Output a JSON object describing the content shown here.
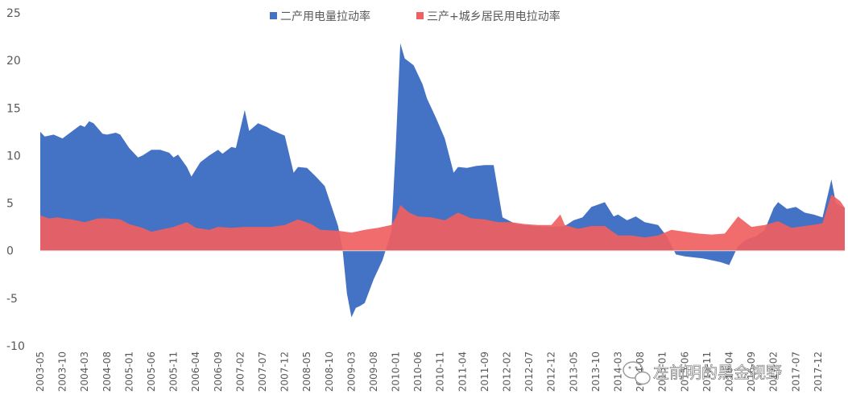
{
  "chart_data": {
    "type": "area",
    "ylim": [
      -10,
      25
    ],
    "yticks": [
      -10,
      -5,
      0,
      5,
      10,
      15,
      20,
      25
    ],
    "grid": false,
    "legend_position": "top",
    "x_start": "2003-05",
    "x_end": "2018-06",
    "x_step_months": 5,
    "xtick_labels": [
      "2003-05",
      "2003-10",
      "2004-03",
      "2004-08",
      "2005-01",
      "2005-06",
      "2005-11",
      "2006-04",
      "2006-09",
      "2007-02",
      "2007-07",
      "2007-12",
      "2008-05",
      "2008-10",
      "2009-03",
      "2009-08",
      "2010-01",
      "2010-06",
      "2010-11",
      "2011-04",
      "2011-09",
      "2012-02",
      "2012-07",
      "2012-12",
      "2013-05",
      "2013-10",
      "2014-03",
      "2014-08",
      "2015-01",
      "2015-06",
      "2015-11",
      "2016-04",
      "2016-09",
      "2017-02",
      "2017-07",
      "2017-12"
    ],
    "series": [
      {
        "name": "二产用电量拉动率",
        "color": "#4472C4",
        "points": [
          [
            "2003-05",
            12.5
          ],
          [
            "2003-06",
            12.0
          ],
          [
            "2003-08",
            12.2
          ],
          [
            "2003-10",
            11.8
          ],
          [
            "2003-12",
            12.5
          ],
          [
            "2004-02",
            13.2
          ],
          [
            "2004-03",
            13.0
          ],
          [
            "2004-04",
            13.6
          ],
          [
            "2004-05",
            13.4
          ],
          [
            "2004-07",
            12.3
          ],
          [
            "2004-08",
            12.2
          ],
          [
            "2004-10",
            12.4
          ],
          [
            "2004-11",
            12.2
          ],
          [
            "2005-01",
            10.8
          ],
          [
            "2005-03",
            9.8
          ],
          [
            "2005-04",
            10.0
          ],
          [
            "2005-06",
            10.6
          ],
          [
            "2005-08",
            10.6
          ],
          [
            "2005-10",
            10.3
          ],
          [
            "2005-11",
            9.8
          ],
          [
            "2005-12",
            10.1
          ],
          [
            "2006-02",
            8.8
          ],
          [
            "2006-03",
            7.8
          ],
          [
            "2006-05",
            9.3
          ],
          [
            "2006-07",
            10.0
          ],
          [
            "2006-09",
            10.6
          ],
          [
            "2006-10",
            10.2
          ],
          [
            "2006-12",
            10.9
          ],
          [
            "2007-01",
            10.8
          ],
          [
            "2007-03",
            14.8
          ],
          [
            "2007-04",
            12.6
          ],
          [
            "2007-06",
            13.4
          ],
          [
            "2007-08",
            13.0
          ],
          [
            "2007-09",
            12.7
          ],
          [
            "2007-11",
            12.3
          ],
          [
            "2007-12",
            12.1
          ],
          [
            "2008-02",
            8.2
          ],
          [
            "2008-03",
            8.8
          ],
          [
            "2008-05",
            8.7
          ],
          [
            "2008-07",
            7.8
          ],
          [
            "2008-09",
            6.8
          ],
          [
            "2008-11",
            4.0
          ],
          [
            "2008-12",
            2.6
          ],
          [
            "2009-01",
            0.2
          ],
          [
            "2009-02",
            -4.5
          ],
          [
            "2009-03",
            -7.0
          ],
          [
            "2009-04",
            -6.0
          ],
          [
            "2009-05",
            -5.8
          ],
          [
            "2009-06",
            -5.5
          ],
          [
            "2009-08",
            -3.0
          ],
          [
            "2009-10",
            -1.0
          ],
          [
            "2009-12",
            2.0
          ],
          [
            "2010-01",
            11.0
          ],
          [
            "2010-02",
            21.8
          ],
          [
            "2010-03",
            20.2
          ],
          [
            "2010-05",
            19.5
          ],
          [
            "2010-07",
            17.5
          ],
          [
            "2010-08",
            16.0
          ],
          [
            "2010-10",
            14.0
          ],
          [
            "2010-12",
            11.8
          ],
          [
            "2011-02",
            8.2
          ],
          [
            "2011-03",
            8.8
          ],
          [
            "2011-05",
            8.7
          ],
          [
            "2011-07",
            8.9
          ],
          [
            "2011-09",
            9.0
          ],
          [
            "2011-11",
            9.0
          ],
          [
            "2012-01",
            3.5
          ],
          [
            "2012-04",
            2.8
          ],
          [
            "2012-08",
            2.6
          ],
          [
            "2012-12",
            2.5
          ],
          [
            "2013-03",
            2.6
          ],
          [
            "2013-05",
            3.2
          ],
          [
            "2013-07",
            3.5
          ],
          [
            "2013-09",
            4.6
          ],
          [
            "2013-12",
            5.1
          ],
          [
            "2014-02",
            3.6
          ],
          [
            "2014-03",
            3.8
          ],
          [
            "2014-05",
            3.2
          ],
          [
            "2014-07",
            3.6
          ],
          [
            "2014-09",
            3.0
          ],
          [
            "2014-12",
            2.7
          ],
          [
            "2015-02",
            1.5
          ],
          [
            "2015-04",
            -0.4
          ],
          [
            "2015-06",
            -0.6
          ],
          [
            "2015-08",
            -0.7
          ],
          [
            "2015-10",
            -0.8
          ],
          [
            "2015-12",
            -1.0
          ],
          [
            "2016-02",
            -1.2
          ],
          [
            "2016-04",
            -1.5
          ],
          [
            "2016-06",
            0.5
          ],
          [
            "2016-08",
            1.2
          ],
          [
            "2016-10",
            1.5
          ],
          [
            "2016-12",
            2.2
          ],
          [
            "2017-02",
            4.5
          ],
          [
            "2017-03",
            5.1
          ],
          [
            "2017-05",
            4.4
          ],
          [
            "2017-07",
            4.6
          ],
          [
            "2017-09",
            4.0
          ],
          [
            "2017-11",
            3.8
          ],
          [
            "2018-01",
            3.5
          ],
          [
            "2018-03",
            7.5
          ],
          [
            "2018-04",
            5.0
          ],
          [
            "2018-06",
            4.5
          ]
        ]
      },
      {
        "name": "三产+城乡居民用电拉动率",
        "color": "#F06060",
        "points": [
          [
            "2003-05",
            3.7
          ],
          [
            "2003-07",
            3.4
          ],
          [
            "2003-09",
            3.5
          ],
          [
            "2003-10",
            3.4
          ],
          [
            "2003-12",
            3.3
          ],
          [
            "2004-03",
            3.0
          ],
          [
            "2004-06",
            3.4
          ],
          [
            "2004-08",
            3.4
          ],
          [
            "2004-11",
            3.3
          ],
          [
            "2005-01",
            2.8
          ],
          [
            "2005-04",
            2.4
          ],
          [
            "2005-06",
            2.0
          ],
          [
            "2005-09",
            2.3
          ],
          [
            "2005-11",
            2.5
          ],
          [
            "2006-02",
            3.0
          ],
          [
            "2006-04",
            2.4
          ],
          [
            "2006-07",
            2.2
          ],
          [
            "2006-09",
            2.5
          ],
          [
            "2006-12",
            2.4
          ],
          [
            "2007-03",
            2.5
          ],
          [
            "2007-06",
            2.5
          ],
          [
            "2007-09",
            2.5
          ],
          [
            "2007-12",
            2.7
          ],
          [
            "2008-03",
            3.3
          ],
          [
            "2008-06",
            2.8
          ],
          [
            "2008-08",
            2.2
          ],
          [
            "2008-12",
            2.1
          ],
          [
            "2009-03",
            1.9
          ],
          [
            "2009-06",
            2.2
          ],
          [
            "2009-09",
            2.4
          ],
          [
            "2009-12",
            2.7
          ],
          [
            "2010-01",
            3.5
          ],
          [
            "2010-02",
            4.8
          ],
          [
            "2010-04",
            4.0
          ],
          [
            "2010-06",
            3.6
          ],
          [
            "2010-09",
            3.5
          ],
          [
            "2010-12",
            3.2
          ],
          [
            "2011-03",
            4.0
          ],
          [
            "2011-06",
            3.4
          ],
          [
            "2011-09",
            3.3
          ],
          [
            "2011-12",
            3.0
          ],
          [
            "2012-03",
            3.0
          ],
          [
            "2012-06",
            2.8
          ],
          [
            "2012-09",
            2.7
          ],
          [
            "2012-12",
            2.7
          ],
          [
            "2013-02",
            3.8
          ],
          [
            "2013-03",
            2.7
          ],
          [
            "2013-06",
            2.3
          ],
          [
            "2013-09",
            2.6
          ],
          [
            "2013-12",
            2.6
          ],
          [
            "2014-03",
            1.6
          ],
          [
            "2014-06",
            1.6
          ],
          [
            "2014-09",
            1.4
          ],
          [
            "2014-12",
            1.6
          ],
          [
            "2015-03",
            2.2
          ],
          [
            "2015-06",
            2.0
          ],
          [
            "2015-09",
            1.8
          ],
          [
            "2015-12",
            1.7
          ],
          [
            "2016-03",
            1.8
          ],
          [
            "2016-06",
            3.6
          ],
          [
            "2016-09",
            2.5
          ],
          [
            "2016-12",
            2.7
          ],
          [
            "2017-03",
            3.1
          ],
          [
            "2017-06",
            2.4
          ],
          [
            "2017-09",
            2.6
          ],
          [
            "2017-12",
            2.8
          ],
          [
            "2018-01",
            2.9
          ],
          [
            "2018-03",
            5.9
          ],
          [
            "2018-05",
            5.2
          ],
          [
            "2018-06",
            4.5
          ]
        ]
      }
    ]
  },
  "watermark": {
    "text": "左前明的黑金视野",
    "icon": "wechat-icon"
  }
}
